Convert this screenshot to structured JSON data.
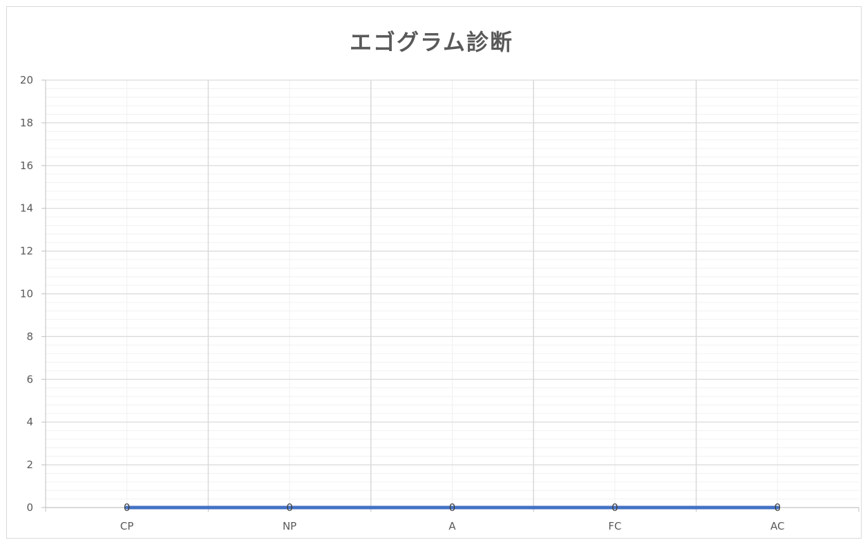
{
  "chart_data": {
    "type": "line",
    "title": "エゴグラム診断",
    "xlabel": "",
    "ylabel": "",
    "categories": [
      "CP",
      "NP",
      "A",
      "FC",
      "AC"
    ],
    "series": [
      {
        "values": [
          0,
          0,
          0,
          0,
          0
        ],
        "color": "#4472c4"
      }
    ],
    "data_labels": [
      "0",
      "0",
      "0",
      "0",
      "0"
    ],
    "ylim": [
      0,
      20
    ],
    "yticks": [
      "0",
      "2",
      "4",
      "6",
      "8",
      "10",
      "12",
      "14",
      "16",
      "18",
      "20"
    ],
    "major_step": 2,
    "minor_step": 0.4,
    "grid": true,
    "legend": "none",
    "colors": {
      "major_grid": "#d9d9d9",
      "minor_grid": "#f0f0f0",
      "axis": "#bfbfbf",
      "text": "#595959"
    }
  }
}
